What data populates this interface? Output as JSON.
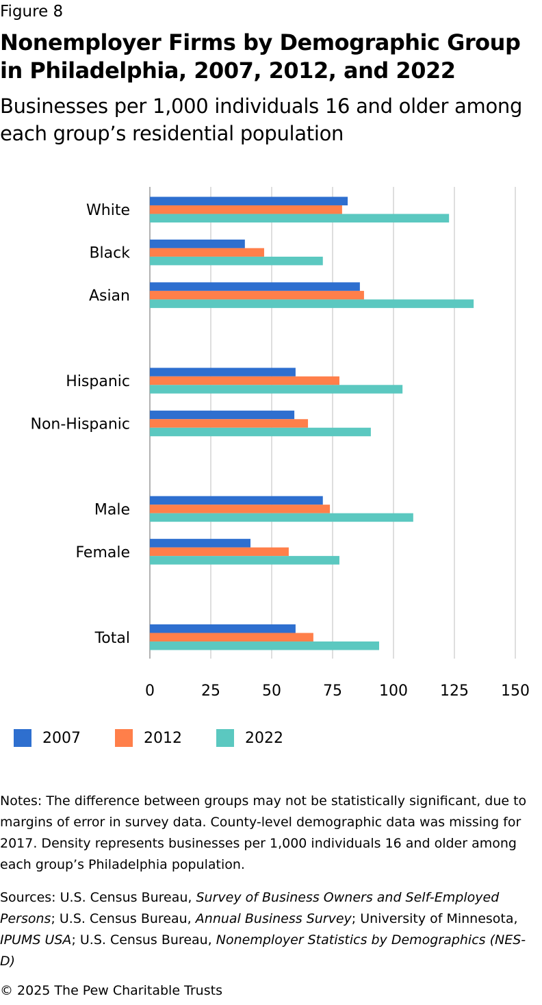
{
  "figure_label": "Figure 8",
  "chart_data": {
    "type": "hbar",
    "title": "Nonemployer Firms by Demographic Group in Philadelphia, 2007, 2012, and 2022",
    "subtitle": "Businesses per 1,000 individuals 16 and older among each group’s residential population",
    "categories": [
      "White",
      "Black",
      "Asian",
      null,
      "Hispanic",
      "Non-Hispanic",
      null,
      "Male",
      "Female",
      null,
      "Total"
    ],
    "series": [
      {
        "name": "2007",
        "color": "#2e6fcf",
        "values": [
          81.2,
          39,
          86.2,
          null,
          59.8,
          59.3,
          null,
          71,
          41.3,
          null,
          59.8
        ]
      },
      {
        "name": "2012",
        "color": "#ff7f4a",
        "values": [
          78.9,
          46.9,
          87.9,
          null,
          77.8,
          64.9,
          null,
          73.9,
          57,
          null,
          67.1
        ]
      },
      {
        "name": "2022",
        "color": "#5bc8c0",
        "values": [
          122.8,
          71,
          132.9,
          null,
          103.7,
          90.7,
          null,
          108.1,
          77.8,
          null,
          94.1
        ]
      }
    ],
    "xlim": [
      0,
      150
    ],
    "xticks": [
      0,
      25,
      50,
      75,
      100,
      125,
      150
    ],
    "grid": true,
    "legend": "bottom"
  },
  "notes": "Notes: The difference between groups may not be statistically significant, due to margins of error in survey data. County-level demographic data was missing for 2017. Density represents businesses per 1,000 individuals 16 and older among each group’s Philadelphia population.",
  "sources": [
    {
      "text": "Sources: U.S. Census Bureau, ",
      "italic": false
    },
    {
      "text": "Survey of Business Owners and Self-Employed Persons",
      "italic": true
    },
    {
      "text": "; U.S. Census Bureau, ",
      "italic": false
    },
    {
      "text": "Annual Business Survey",
      "italic": true
    },
    {
      "text": "; University of Minnesota, ",
      "italic": false
    },
    {
      "text": "IPUMS USA",
      "italic": true
    },
    {
      "text": "; U.S. Census Bureau, ",
      "italic": false
    },
    {
      "text": "Nonemployer Statistics by Demographics (NES-D)",
      "italic": true
    }
  ],
  "copyright": "© 2025 The Pew Charitable Trusts"
}
